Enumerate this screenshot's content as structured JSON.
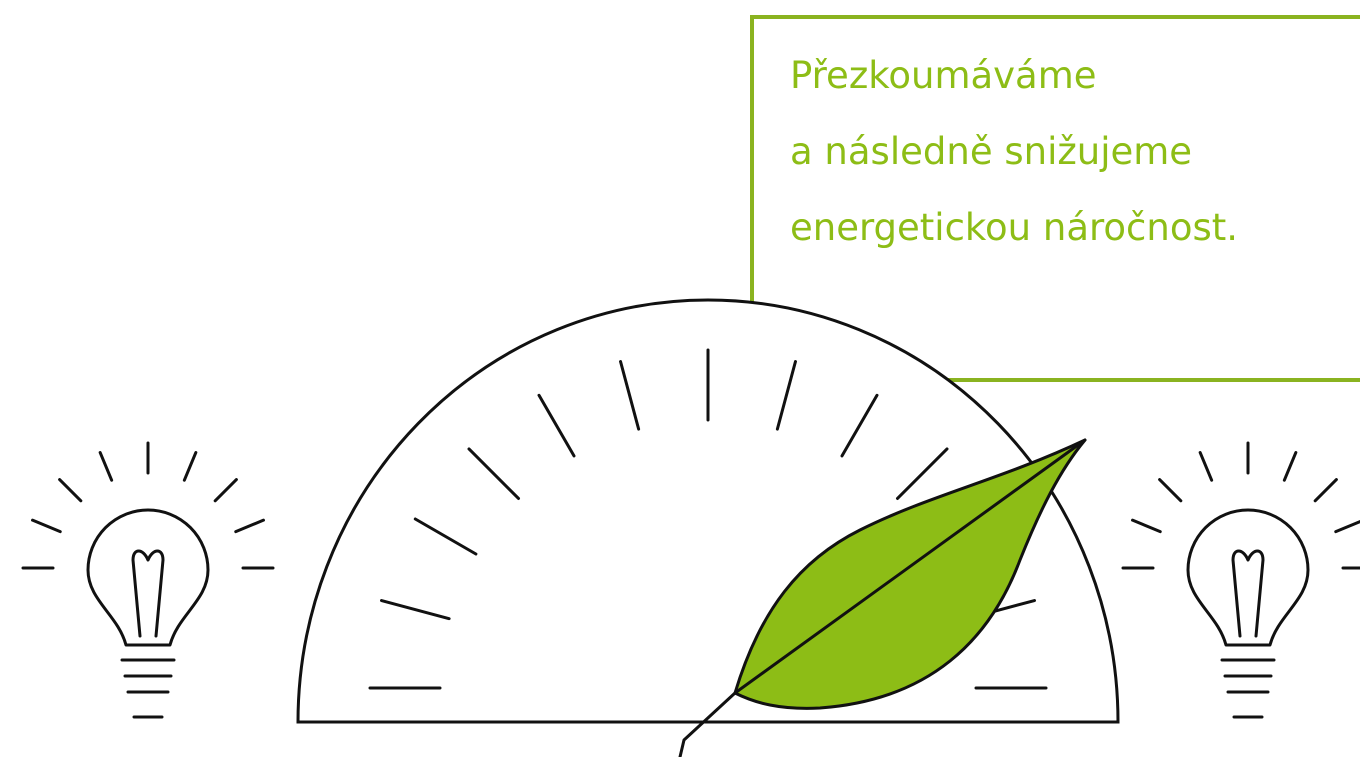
{
  "text": {
    "lines": [
      "Přezkoumáváme",
      "a následně snižujeme",
      "energetickou náročnost."
    ]
  }
}
